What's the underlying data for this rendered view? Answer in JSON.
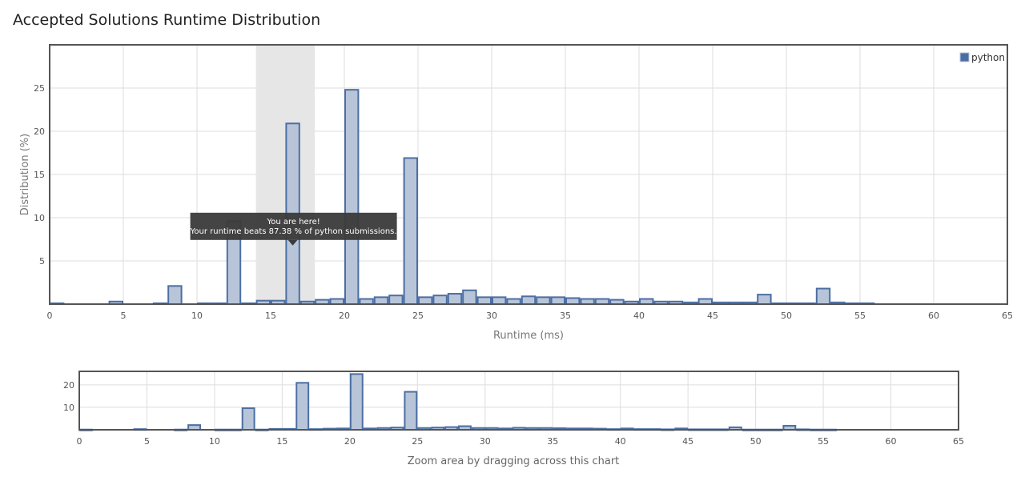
{
  "page_title": "Accepted Solutions Runtime Distribution",
  "colors": {
    "bar_fill": "#b8c5d9",
    "bar_stroke": "#4c6ea3",
    "highlight_band": "#e6e6e6",
    "tooltip_bg": "#3a3a3a"
  },
  "chart_data": {
    "type": "bar",
    "xlabel": "Runtime (ms)",
    "ylabel": "Distribution (%)",
    "xlim": [
      0,
      65
    ],
    "ylim": [
      0,
      30
    ],
    "xticks": [
      0,
      5,
      10,
      15,
      20,
      25,
      30,
      35,
      40,
      45,
      50,
      55,
      60,
      65
    ],
    "yticks": [
      5,
      10,
      15,
      20,
      25
    ],
    "grid": true,
    "legend_position": "top-right",
    "series": [
      {
        "name": "python",
        "points": [
          {
            "x": 0,
            "y": 0.1
          },
          {
            "x": 4,
            "y": 0.3
          },
          {
            "x": 7,
            "y": 0.1
          },
          {
            "x": 8,
            "y": 2.1
          },
          {
            "x": 10,
            "y": 0.1
          },
          {
            "x": 11,
            "y": 0.1
          },
          {
            "x": 12,
            "y": 9.6
          },
          {
            "x": 13,
            "y": 0.1
          },
          {
            "x": 14,
            "y": 0.4
          },
          {
            "x": 15,
            "y": 0.4
          },
          {
            "x": 16,
            "y": 20.9
          },
          {
            "x": 17,
            "y": 0.3
          },
          {
            "x": 18,
            "y": 0.5
          },
          {
            "x": 19,
            "y": 0.6
          },
          {
            "x": 20,
            "y": 24.8
          },
          {
            "x": 21,
            "y": 0.6
          },
          {
            "x": 22,
            "y": 0.8
          },
          {
            "x": 23,
            "y": 1.0
          },
          {
            "x": 24,
            "y": 16.9
          },
          {
            "x": 25,
            "y": 0.8
          },
          {
            "x": 26,
            "y": 1.0
          },
          {
            "x": 27,
            "y": 1.2
          },
          {
            "x": 28,
            "y": 1.6
          },
          {
            "x": 29,
            "y": 0.8
          },
          {
            "x": 30,
            "y": 0.8
          },
          {
            "x": 31,
            "y": 0.6
          },
          {
            "x": 32,
            "y": 0.9
          },
          {
            "x": 33,
            "y": 0.8
          },
          {
            "x": 34,
            "y": 0.8
          },
          {
            "x": 35,
            "y": 0.7
          },
          {
            "x": 36,
            "y": 0.6
          },
          {
            "x": 37,
            "y": 0.6
          },
          {
            "x": 38,
            "y": 0.5
          },
          {
            "x": 39,
            "y": 0.3
          },
          {
            "x": 40,
            "y": 0.6
          },
          {
            "x": 41,
            "y": 0.3
          },
          {
            "x": 42,
            "y": 0.3
          },
          {
            "x": 43,
            "y": 0.2
          },
          {
            "x": 44,
            "y": 0.6
          },
          {
            "x": 45,
            "y": 0.2
          },
          {
            "x": 46,
            "y": 0.2
          },
          {
            "x": 47,
            "y": 0.2
          },
          {
            "x": 48,
            "y": 1.1
          },
          {
            "x": 49,
            "y": 0.1
          },
          {
            "x": 50,
            "y": 0.1
          },
          {
            "x": 51,
            "y": 0.1
          },
          {
            "x": 52,
            "y": 1.8
          },
          {
            "x": 53,
            "y": 0.2
          },
          {
            "x": 54,
            "y": 0.1
          },
          {
            "x": 55,
            "y": 0.1
          }
        ]
      }
    ],
    "highlight_range": [
      14,
      18
    ],
    "tooltip": {
      "title": "You are here!",
      "text": "Your runtime beats 87.38 % of python submissions.",
      "anchor": {
        "x": 16.5,
        "y": 6.5
      }
    },
    "navigator": {
      "caption": "Zoom area by dragging across this chart",
      "yticks": [
        10,
        20
      ],
      "ylim": [
        0,
        26
      ],
      "xticks": [
        0,
        5,
        10,
        15,
        20,
        25,
        30,
        35,
        40,
        45,
        50,
        55,
        60,
        65
      ]
    }
  }
}
